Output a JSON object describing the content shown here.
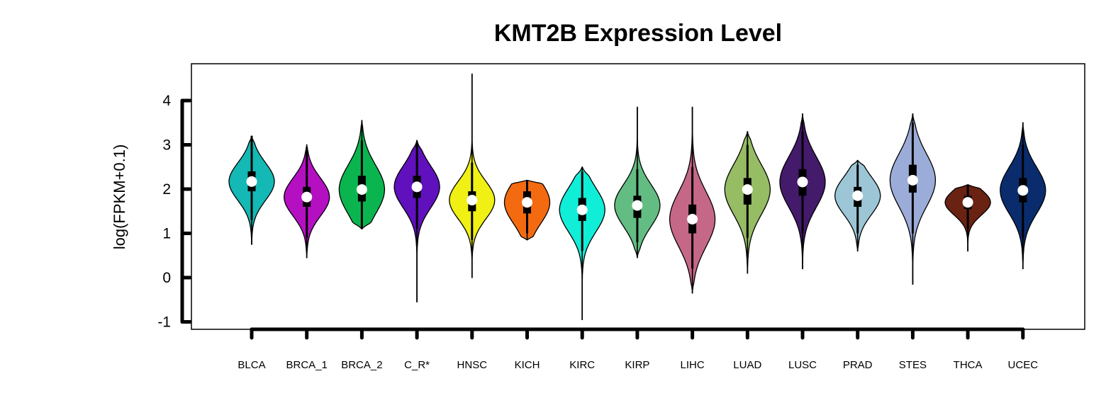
{
  "chart_data": {
    "type": "violin",
    "title": "KMT2B Expression Level",
    "xlabel": "",
    "ylabel": "log(FPKM+0.1)",
    "ylim": [
      -1.15,
      4.8
    ],
    "yticks": [
      "-1",
      "0",
      "1",
      "2",
      "3",
      "4"
    ],
    "ytick_values": [
      -1,
      0,
      1,
      2,
      3,
      4
    ],
    "grid": false,
    "legend": "none",
    "series": [
      {
        "category": "BLCA",
        "color": "#14B8B4",
        "min": 0.75,
        "max": 3.2,
        "q1": 1.95,
        "median": 2.17,
        "q3": 2.4,
        "whisker_low": 1.3,
        "whisker_high": 3.2
      },
      {
        "category": "BRCA_1",
        "color": "#B50FC2",
        "min": 0.45,
        "max": 3.0,
        "q1": 1.6,
        "median": 1.82,
        "q3": 2.05,
        "whisker_low": 0.9,
        "whisker_high": 2.95
      },
      {
        "category": "BRCA_2",
        "color": "#0AB54F",
        "min": 1.1,
        "max": 3.55,
        "q1": 1.72,
        "median": 1.99,
        "q3": 2.3,
        "whisker_low": 1.1,
        "whisker_high": 3.1
      },
      {
        "category": "C_R*",
        "color": "#6010BC",
        "min": -0.55,
        "max": 3.1,
        "q1": 1.8,
        "median": 2.05,
        "q3": 2.3,
        "whisker_low": 1.1,
        "whisker_high": 3.05
      },
      {
        "category": "HNSC",
        "color": "#F0F015",
        "min": 0.0,
        "max": 4.6,
        "q1": 1.5,
        "median": 1.75,
        "q3": 1.95,
        "whisker_low": 0.85,
        "whisker_high": 2.6
      },
      {
        "category": "KICH",
        "color": "#F46A11",
        "min": 0.85,
        "max": 2.2,
        "q1": 1.45,
        "median": 1.7,
        "q3": 1.95,
        "whisker_low": 1.0,
        "whisker_high": 2.2
      },
      {
        "category": "KIRC",
        "color": "#10EED8",
        "min": -0.95,
        "max": 2.5,
        "q1": 1.28,
        "median": 1.53,
        "q3": 1.8,
        "whisker_low": 0.6,
        "whisker_high": 2.4
      },
      {
        "category": "KIRP",
        "color": "#63BD82",
        "min": 0.45,
        "max": 3.85,
        "q1": 1.35,
        "median": 1.63,
        "q3": 1.85,
        "whisker_low": 0.8,
        "whisker_high": 2.45
      },
      {
        "category": "LIHC",
        "color": "#C56888",
        "min": -0.35,
        "max": 3.85,
        "q1": 1.0,
        "median": 1.32,
        "q3": 1.65,
        "whisker_low": 0.2,
        "whisker_high": 2.5
      },
      {
        "category": "LUAD",
        "color": "#96BC64",
        "min": 0.1,
        "max": 3.3,
        "q1": 1.65,
        "median": 1.99,
        "q3": 2.25,
        "whisker_low": 0.9,
        "whisker_high": 3.0
      },
      {
        "category": "LUSC",
        "color": "#441A6A",
        "min": 0.2,
        "max": 3.7,
        "q1": 1.85,
        "median": 2.16,
        "q3": 2.45,
        "whisker_low": 1.0,
        "whisker_high": 3.3
      },
      {
        "category": "PRAD",
        "color": "#9CC6D6",
        "min": 0.6,
        "max": 2.65,
        "q1": 1.6,
        "median": 1.85,
        "q3": 2.05,
        "whisker_low": 1.0,
        "whisker_high": 2.55
      },
      {
        "category": "STES",
        "color": "#9CACD8",
        "min": -0.15,
        "max": 3.7,
        "q1": 1.92,
        "median": 2.2,
        "q3": 2.55,
        "whisker_low": 1.0,
        "whisker_high": 3.5
      },
      {
        "category": "THCA",
        "color": "#6A2312",
        "min": 0.6,
        "max": 2.1,
        "q1": 1.55,
        "median": 1.7,
        "q3": 1.85,
        "whisker_low": 1.1,
        "whisker_high": 2.1
      },
      {
        "category": "UCEC",
        "color": "#0A2C6C",
        "min": 0.2,
        "max": 3.5,
        "q1": 1.7,
        "median": 1.97,
        "q3": 2.25,
        "whisker_low": 0.9,
        "whisker_high": 3.0
      }
    ]
  }
}
